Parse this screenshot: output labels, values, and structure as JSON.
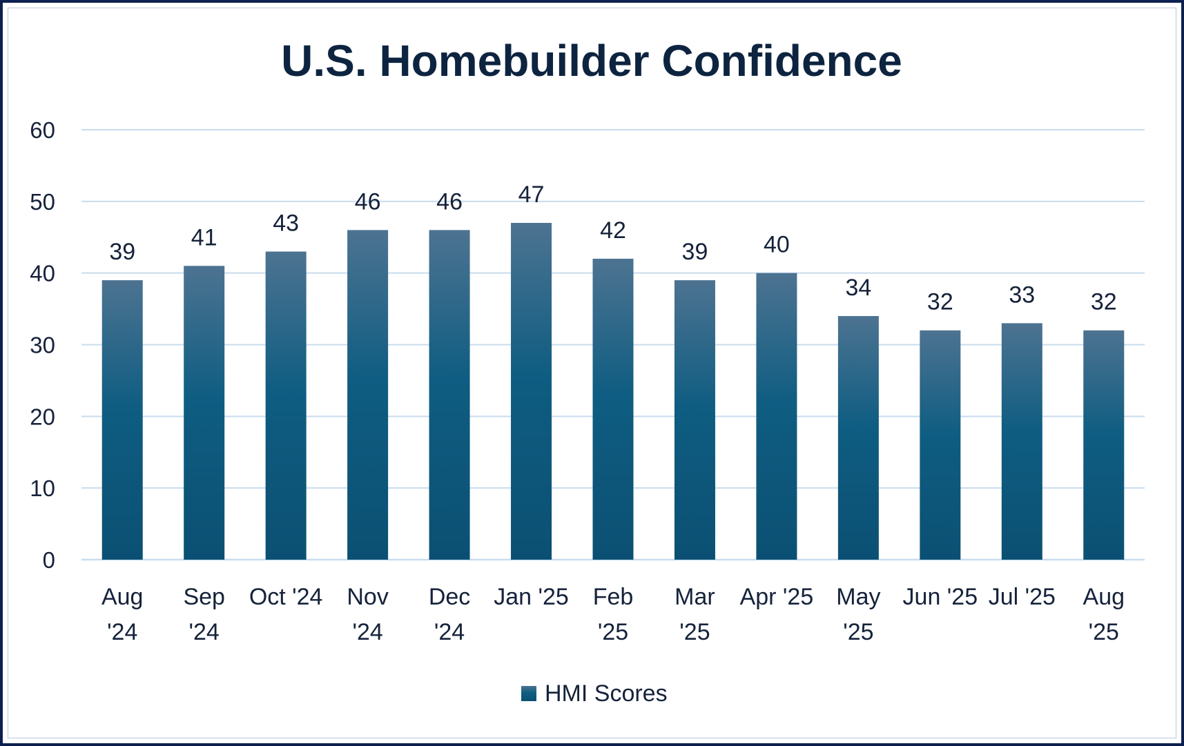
{
  "chart_data": {
    "type": "bar",
    "title": "U.S. Homebuilder Confidence",
    "xlabel": "",
    "ylabel": "",
    "ylim": [
      0,
      60
    ],
    "yticks": [
      "0",
      "10",
      "20",
      "30",
      "40",
      "50",
      "60"
    ],
    "grid": true,
    "legend_position": "bottom-center",
    "categories": [
      [
        "Aug",
        "'24"
      ],
      [
        "Sep",
        "'24"
      ],
      [
        "Oct '24"
      ],
      [
        "Nov",
        "'24"
      ],
      [
        "Dec",
        "'24"
      ],
      [
        "Jan '25"
      ],
      [
        "Feb",
        "'25"
      ],
      [
        "Mar",
        "'25"
      ],
      [
        "Apr '25"
      ],
      [
        "May",
        "'25"
      ],
      [
        "Jun '25"
      ],
      [
        "Jul '25"
      ],
      [
        "Aug",
        "'25"
      ]
    ],
    "series": [
      {
        "name": "HMI Scores",
        "values": [
          39,
          41,
          43,
          46,
          46,
          47,
          42,
          39,
          40,
          34,
          32,
          33,
          32
        ]
      }
    ],
    "colors": {
      "bar_top": "#4d7391",
      "bar_mid": "#0f5d82",
      "bar_bottom": "#0b5073",
      "grid": "#c8dcee",
      "text": "#15223a",
      "title": "#0d2440"
    }
  }
}
